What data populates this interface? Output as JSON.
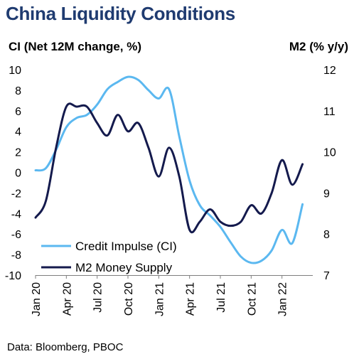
{
  "chart_data": {
    "type": "line",
    "title": "China Liquidity Conditions",
    "ylabel_left": "CI (Net 12M change, %)",
    "ylabel_right": "M2 (% y/y)",
    "source": "Data: Bloomberg, PBOC",
    "y_left": {
      "min": -10,
      "max": 10,
      "step": 2,
      "ticks": [
        "10",
        "8",
        "6",
        "4",
        "2",
        "0",
        "-2",
        "-4",
        "-6",
        "-8",
        "-10"
      ]
    },
    "y_right": {
      "min": 7,
      "max": 12,
      "step": 1,
      "ticks": [
        "12",
        "11",
        "10",
        "9",
        "8",
        "7"
      ]
    },
    "x_range": [
      "2020-01",
      "2022-04"
    ],
    "x_ticks": [
      {
        "label": "Jan 20",
        "month": "2020-01"
      },
      {
        "label": "Apr 20",
        "month": "2020-04"
      },
      {
        "label": "Jul 20",
        "month": "2020-07"
      },
      {
        "label": "Oct 20",
        "month": "2020-10"
      },
      {
        "label": "Jan 21",
        "month": "2021-01"
      },
      {
        "label": "Apr 21",
        "month": "2021-04"
      },
      {
        "label": "Jul 21",
        "month": "2021-07"
      },
      {
        "label": "Oct 21",
        "month": "2021-10"
      },
      {
        "label": "Jan 22",
        "month": "2022-01"
      }
    ],
    "legend": {
      "position": "bottom-left"
    },
    "grid": false,
    "series": [
      {
        "name": "Credit Impulse (CI)",
        "axis": "left",
        "color": "#5bb8f0",
        "points": [
          [
            "2020-01",
            0.2
          ],
          [
            "2020-02",
            0.4
          ],
          [
            "2020-03",
            2.2
          ],
          [
            "2020-04",
            4.4
          ],
          [
            "2020-05",
            5.3
          ],
          [
            "2020-06",
            5.6
          ],
          [
            "2020-07",
            6.6
          ],
          [
            "2020-08",
            8.1
          ],
          [
            "2020-09",
            8.8
          ],
          [
            "2020-10",
            9.3
          ],
          [
            "2020-11",
            9.0
          ],
          [
            "2020-12",
            8.0
          ],
          [
            "2021-01",
            7.2
          ],
          [
            "2021-02",
            8.1
          ],
          [
            "2021-03",
            3.5
          ],
          [
            "2021-04",
            -0.8
          ],
          [
            "2021-05",
            -3.2
          ],
          [
            "2021-06",
            -4.2
          ],
          [
            "2021-07",
            -5.3
          ],
          [
            "2021-08",
            -6.8
          ],
          [
            "2021-09",
            -8.2
          ],
          [
            "2021-10",
            -8.8
          ],
          [
            "2021-11",
            -8.6
          ],
          [
            "2021-12",
            -7.6
          ],
          [
            "2022-01",
            -5.6
          ],
          [
            "2022-02",
            -6.9
          ],
          [
            "2022-03",
            -3.1
          ]
        ]
      },
      {
        "name": "M2 Money Supply",
        "axis": "right",
        "color": "#141a4d",
        "points": [
          [
            "2020-01",
            8.4
          ],
          [
            "2020-02",
            8.8
          ],
          [
            "2020-03",
            10.1
          ],
          [
            "2020-04",
            11.1
          ],
          [
            "2020-05",
            11.1
          ],
          [
            "2020-06",
            11.1
          ],
          [
            "2020-07",
            10.7
          ],
          [
            "2020-08",
            10.4
          ],
          [
            "2020-09",
            10.9
          ],
          [
            "2020-10",
            10.5
          ],
          [
            "2020-11",
            10.7
          ],
          [
            "2020-12",
            10.1
          ],
          [
            "2021-01",
            9.4
          ],
          [
            "2021-02",
            10.1
          ],
          [
            "2021-03",
            9.4
          ],
          [
            "2021-04",
            8.1
          ],
          [
            "2021-05",
            8.3
          ],
          [
            "2021-06",
            8.6
          ],
          [
            "2021-07",
            8.3
          ],
          [
            "2021-08",
            8.2
          ],
          [
            "2021-09",
            8.3
          ],
          [
            "2021-10",
            8.7
          ],
          [
            "2021-11",
            8.5
          ],
          [
            "2021-12",
            9.0
          ],
          [
            "2022-01",
            9.8
          ],
          [
            "2022-02",
            9.2
          ],
          [
            "2022-03",
            9.7
          ]
        ]
      }
    ]
  }
}
